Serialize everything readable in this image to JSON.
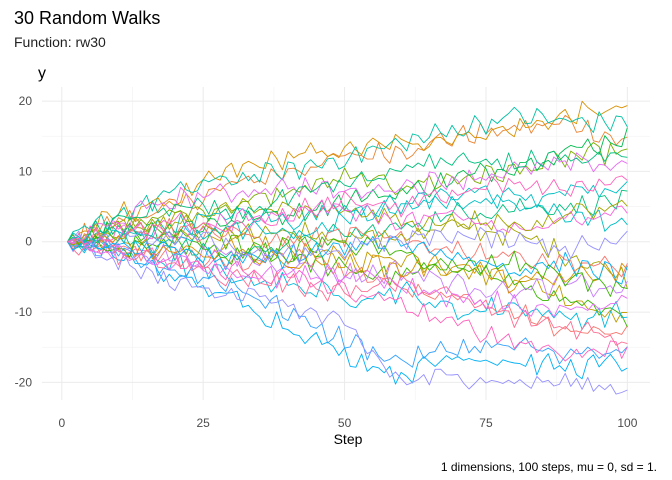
{
  "chart_data": {
    "type": "line",
    "title": "30 Random Walks",
    "subtitle": "Function: rw30",
    "xlabel": "Step",
    "ylabel": "y",
    "caption": "1 dimensions, 100 steps, mu = 0, sd = 1.",
    "xlim": [
      -3.5,
      104
    ],
    "ylim": [
      -22.5,
      22
    ],
    "x_ticks": [
      0,
      25,
      50,
      75,
      100
    ],
    "y_ticks": [
      -20,
      -10,
      0,
      10,
      20
    ],
    "x_tick_labels": [
      "0",
      "25",
      "50",
      "75",
      "100"
    ],
    "y_tick_labels": [
      "-20",
      "-10",
      "0",
      "10",
      "20"
    ],
    "grid": true,
    "legend": "none",
    "n_steps": 100,
    "series": [
      {
        "color": "#F8766D",
        "x": [
          1,
          10,
          20,
          30,
          40,
          50,
          60,
          70,
          80,
          90,
          100
        ],
        "values": [
          0,
          -1,
          -2,
          -3,
          -2,
          -4,
          -6,
          -8,
          -10,
          -13,
          -13
        ]
      },
      {
        "color": "#EA8331",
        "x": [
          1,
          10,
          20,
          30,
          40,
          50,
          60,
          70,
          80,
          90,
          100
        ],
        "values": [
          0,
          3,
          5,
          8,
          10,
          12,
          13,
          15,
          16,
          17,
          14
        ]
      },
      {
        "color": "#D89000",
        "x": [
          1,
          10,
          20,
          30,
          40,
          50,
          60,
          70,
          80,
          90,
          100
        ],
        "values": [
          0,
          4,
          6,
          10,
          12,
          13,
          14,
          15,
          16,
          18,
          19
        ]
      },
      {
        "color": "#C09B00",
        "x": [
          1,
          10,
          20,
          30,
          40,
          50,
          60,
          70,
          80,
          90,
          100
        ],
        "values": [
          0,
          -1,
          0,
          1,
          -1,
          -3,
          -2,
          -4,
          -5,
          -8,
          -11
        ]
      },
      {
        "color": "#A3A500",
        "x": [
          1,
          10,
          20,
          30,
          40,
          50,
          60,
          70,
          80,
          90,
          100
        ],
        "values": [
          0,
          1,
          3,
          5,
          4,
          5,
          3,
          2,
          1,
          -2,
          -5
        ]
      },
      {
        "color": "#7CAE00",
        "x": [
          1,
          10,
          20,
          30,
          40,
          50,
          60,
          70,
          80,
          90,
          100
        ],
        "values": [
          0,
          2,
          4,
          5,
          7,
          9,
          8,
          9,
          10,
          12,
          13
        ]
      },
      {
        "color": "#39B600",
        "x": [
          1,
          10,
          20,
          30,
          40,
          50,
          60,
          70,
          80,
          90,
          100
        ],
        "values": [
          0,
          1,
          1,
          0,
          -2,
          -4,
          -5,
          -3,
          -6,
          -9,
          -11
        ]
      },
      {
        "color": "#00BB4E",
        "x": [
          1,
          10,
          20,
          30,
          40,
          50,
          60,
          70,
          80,
          90,
          100
        ],
        "values": [
          0,
          2,
          2,
          3,
          4,
          6,
          7,
          9,
          11,
          13,
          15
        ]
      },
      {
        "color": "#00BF7D",
        "x": [
          1,
          10,
          20,
          30,
          40,
          50,
          60,
          70,
          80,
          90,
          100
        ],
        "values": [
          0,
          0,
          -1,
          -2,
          0,
          1,
          2,
          4,
          5,
          5,
          6
        ]
      },
      {
        "color": "#00C1A3",
        "x": [
          1,
          10,
          20,
          30,
          40,
          50,
          60,
          70,
          80,
          90,
          100
        ],
        "values": [
          0,
          4,
          7,
          9,
          10,
          12,
          14,
          16,
          18,
          17,
          17
        ]
      },
      {
        "color": "#00BFC4",
        "x": [
          1,
          10,
          20,
          30,
          40,
          50,
          60,
          70,
          80,
          90,
          100
        ],
        "values": [
          0,
          1,
          2,
          4,
          3,
          5,
          5,
          6,
          5,
          4,
          2
        ]
      },
      {
        "color": "#00BAE0",
        "x": [
          1,
          10,
          20,
          30,
          40,
          50,
          60,
          70,
          80,
          90,
          100
        ],
        "values": [
          0,
          -1,
          -3,
          -5,
          -6,
          -8,
          -7,
          -10,
          -9,
          -11,
          -10
        ]
      },
      {
        "color": "#00B0F6",
        "x": [
          1,
          10,
          20,
          30,
          40,
          50,
          60,
          70,
          80,
          90,
          100
        ],
        "values": [
          0,
          -2,
          -5,
          -8,
          -12,
          -16,
          -19,
          -16,
          -17,
          -18,
          -17
        ]
      },
      {
        "color": "#35A2FF",
        "x": [
          1,
          10,
          20,
          30,
          40,
          50,
          60,
          70,
          80,
          90,
          100
        ],
        "values": [
          0,
          -2,
          -4,
          -6,
          -10,
          -14,
          -17,
          -15,
          -15,
          -16,
          -16
        ]
      },
      {
        "color": "#9590FF",
        "x": [
          1,
          10,
          20,
          30,
          40,
          50,
          60,
          70,
          80,
          90,
          100
        ],
        "values": [
          0,
          -3,
          -6,
          -7,
          -9,
          -12,
          -20,
          -19,
          -20,
          -20,
          -21
        ]
      },
      {
        "color": "#C77CFF",
        "x": [
          1,
          10,
          20,
          30,
          40,
          50,
          60,
          70,
          80,
          90,
          100
        ],
        "values": [
          0,
          -1,
          -2,
          -2,
          -3,
          -5,
          -4,
          -6,
          -7,
          -6,
          -7
        ]
      },
      {
        "color": "#E76BF3",
        "x": [
          1,
          10,
          20,
          30,
          40,
          50,
          60,
          70,
          80,
          90,
          100
        ],
        "values": [
          0,
          3,
          6,
          7,
          8,
          7,
          8,
          9,
          10,
          11,
          11
        ]
      },
      {
        "color": "#FA62DB",
        "x": [
          1,
          10,
          20,
          30,
          40,
          50,
          60,
          70,
          80,
          90,
          100
        ],
        "values": [
          0,
          2,
          1,
          3,
          4,
          5,
          3,
          4,
          2,
          3,
          4
        ]
      },
      {
        "color": "#FF62BC",
        "x": [
          1,
          10,
          20,
          30,
          40,
          50,
          60,
          70,
          80,
          90,
          100
        ],
        "values": [
          0,
          -1,
          -3,
          -4,
          -5,
          -7,
          -9,
          -12,
          -14,
          -16,
          -15
        ]
      },
      {
        "color": "#FF6C91",
        "x": [
          1,
          10,
          20,
          30,
          40,
          50,
          60,
          70,
          80,
          90,
          100
        ],
        "values": [
          0,
          -2,
          -3,
          -5,
          -6,
          -7,
          -6,
          -8,
          -11,
          -12,
          -14
        ]
      },
      {
        "color": "#F8766D",
        "x": [
          1,
          10,
          20,
          30,
          40,
          50,
          60,
          70,
          80,
          90,
          100
        ],
        "values": [
          0,
          1,
          2,
          1,
          0,
          1,
          0,
          -1,
          -2,
          -3,
          -4
        ]
      },
      {
        "color": "#D89000",
        "x": [
          1,
          10,
          20,
          30,
          40,
          50,
          60,
          70,
          80,
          90,
          100
        ],
        "values": [
          0,
          0,
          -2,
          -1,
          -3,
          -2,
          -4,
          -3,
          -6,
          -5,
          -4
        ]
      },
      {
        "color": "#A3A500",
        "x": [
          1,
          10,
          20,
          30,
          40,
          50,
          60,
          70,
          80,
          90,
          100
        ],
        "values": [
          0,
          2,
          3,
          1,
          2,
          0,
          1,
          3,
          2,
          4,
          5
        ]
      },
      {
        "color": "#39B600",
        "x": [
          1,
          10,
          20,
          30,
          40,
          50,
          60,
          70,
          80,
          90,
          100
        ],
        "values": [
          0,
          -1,
          0,
          -2,
          -1,
          0,
          -2,
          -4,
          -3,
          -5,
          -7
        ]
      },
      {
        "color": "#00BF7D",
        "x": [
          1,
          10,
          20,
          30,
          40,
          50,
          60,
          70,
          80,
          90,
          100
        ],
        "values": [
          0,
          3,
          5,
          4,
          6,
          8,
          10,
          12,
          11,
          12,
          13
        ]
      },
      {
        "color": "#00BFC4",
        "x": [
          1,
          10,
          20,
          30,
          40,
          50,
          60,
          70,
          80,
          90,
          100
        ],
        "values": [
          0,
          1,
          0,
          2,
          1,
          3,
          5,
          7,
          6,
          7,
          8
        ]
      },
      {
        "color": "#00B0F6",
        "x": [
          1,
          10,
          20,
          30,
          40,
          50,
          60,
          70,
          80,
          90,
          100
        ],
        "values": [
          0,
          -1,
          -1,
          -3,
          -2,
          -1,
          0,
          -2,
          -4,
          -3,
          -5
        ]
      },
      {
        "color": "#9590FF",
        "x": [
          1,
          10,
          20,
          30,
          40,
          50,
          60,
          70,
          80,
          90,
          100
        ],
        "values": [
          0,
          0,
          1,
          -1,
          -2,
          -1,
          0,
          1,
          0,
          -1,
          0
        ]
      },
      {
        "color": "#E76BF3",
        "x": [
          1,
          10,
          20,
          30,
          40,
          50,
          60,
          70,
          80,
          90,
          100
        ],
        "values": [
          0,
          -2,
          -3,
          -4,
          -5,
          -4,
          -6,
          -8,
          -9,
          -10,
          -9
        ]
      },
      {
        "color": "#FF62BC",
        "x": [
          1,
          10,
          20,
          30,
          40,
          50,
          60,
          70,
          80,
          90,
          100
        ],
        "values": [
          0,
          1,
          3,
          2,
          4,
          6,
          5,
          7,
          8,
          7,
          10
        ]
      }
    ]
  }
}
